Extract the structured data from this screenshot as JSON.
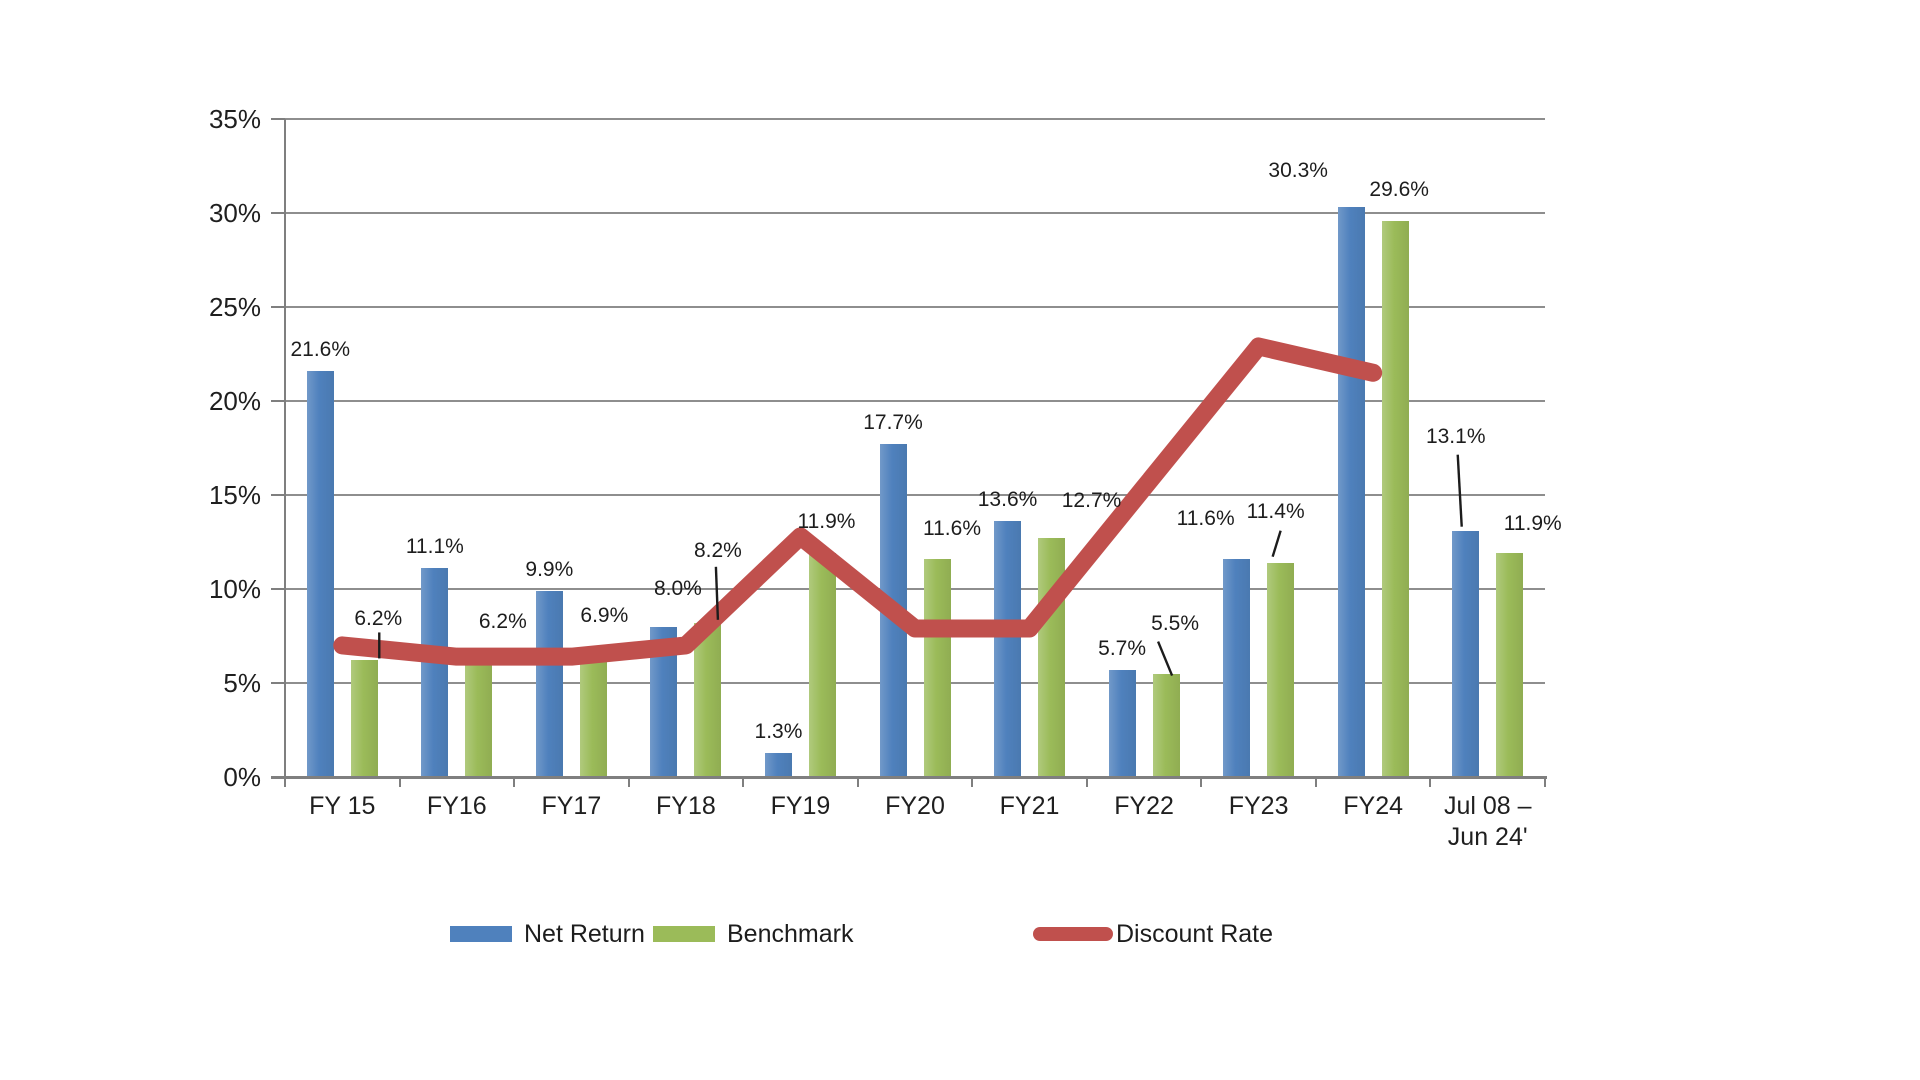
{
  "chart_data": {
    "type": "combo-bar-line",
    "title": "",
    "xlabel": "",
    "ylabel": "",
    "categories": [
      "FY 15",
      "FY16",
      "FY17",
      "FY18",
      "FY19",
      "FY20",
      "FY21",
      "FY22",
      "FY23",
      "FY24",
      "Jul 08 –\nJun 24'"
    ],
    "series": [
      {
        "name": "Net Return",
        "type": "bar",
        "color": "#4F81BD",
        "values": [
          21.6,
          11.1,
          9.9,
          8.0,
          1.3,
          17.7,
          13.6,
          5.7,
          11.6,
          30.3,
          13.1
        ],
        "labels": [
          "21.6%",
          "11.1%",
          "9.9%",
          "8.0%",
          "1.3%",
          "17.7%",
          "13.6%",
          "5.7%",
          "11.6%",
          "30.3%",
          "13.1%"
        ],
        "label_offsets": {
          "3": {
            "dx": 14,
            "dy": -17
          },
          "8": {
            "dx": -31,
            "dy": -19
          },
          "9": {
            "dx": -53,
            "dy": -15
          },
          "10": {
            "dx": -10,
            "dy": -73,
            "leader": [
              -8,
              -76,
              -4,
              -4
            ]
          }
        }
      },
      {
        "name": "Benchmark",
        "type": "bar",
        "color": "#9BBB59",
        "values": [
          6.2,
          6.2,
          6.9,
          8.2,
          11.9,
          11.6,
          12.7,
          5.5,
          11.4,
          29.6,
          11.9
        ],
        "labels": [
          "6.2%",
          "6.2%",
          "6.9%",
          "8.2%",
          "11.9%",
          "11.6%",
          "12.7%",
          "5.5%",
          "11.4%",
          "29.6%",
          "11.9%"
        ],
        "label_offsets": {
          "0": {
            "dx": 14,
            "dy": -20,
            "leader": [
              15,
              -28,
              15,
              -2
            ]
          },
          "1": {
            "dx": 24,
            "dy": -17
          },
          "2": {
            "dx": 11,
            "dy": -10
          },
          "3": {
            "dx": 10,
            "dy": -51,
            "leader": [
              8,
              -56,
              10,
              -3
            ]
          },
          "4": {
            "dx": 4,
            "dy": -10
          },
          "5": {
            "dx": 15,
            "dy": -9
          },
          "6": {
            "dx": 40,
            "dy": -16
          },
          "7": {
            "dx": 9,
            "dy": -29,
            "leader": [
              -8,
              -32,
              6,
              2
            ]
          },
          "8": {
            "dx": -5,
            "dy": -30,
            "leader": [
              0,
              -32,
              -8,
              -6
            ]
          },
          "9": {
            "dx": 4,
            "dy": -10
          },
          "10": {
            "dx": 23,
            "dy": -8
          }
        }
      },
      {
        "name": "Discount Rate",
        "type": "line",
        "color": "#C0504D",
        "values": [
          7.0,
          6.4,
          6.4,
          7.0,
          12.8,
          7.9,
          7.9,
          15.4,
          22.9,
          21.5,
          null
        ],
        "values_note": "estimated from gridlines; line has no data labels and stops at FY24"
      }
    ],
    "ylim": [
      0,
      35
    ],
    "ytick_step": 5,
    "ytick_labels": [
      "0%",
      "5%",
      "10%",
      "15%",
      "20%",
      "25%",
      "30%",
      "35%"
    ],
    "grid": true,
    "legend_position": "bottom",
    "colors": {
      "gridline": "#8e8e8e",
      "axis": "#7f7f7f",
      "text": "#1d1d1d",
      "leader_line": "#1c1c1c",
      "background": "#ffffff"
    }
  }
}
